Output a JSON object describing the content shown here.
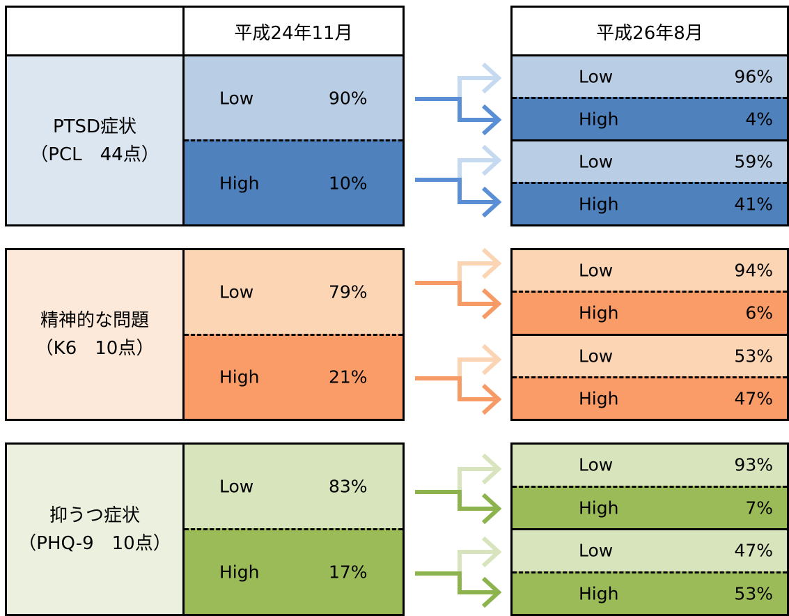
{
  "header": {
    "time1": "平成24年11月",
    "time2": "平成26年8月"
  },
  "groups": [
    {
      "label": "PTSD症状",
      "sublabel": "（PCL　44点）",
      "colors": {
        "light": "#b9cde4",
        "dark": "#4f81bd",
        "label_bg": "#dce6f1",
        "arrow_light": "#c5d9f1",
        "arrow_dark": "#5b8fd5"
      },
      "t1": [
        {
          "level": "Low",
          "pct": "90%"
        },
        {
          "level": "High",
          "pct": "10%"
        }
      ],
      "t2_from_low": [
        {
          "level": "Low",
          "pct": "96%"
        },
        {
          "level": "High",
          "pct": "4%"
        }
      ],
      "t2_from_high": [
        {
          "level": "Low",
          "pct": "59%"
        },
        {
          "level": "High",
          "pct": "41%"
        }
      ]
    },
    {
      "label": "精神的な問題",
      "sublabel": "（K6　10点）",
      "colors": {
        "light": "#fcd5b5",
        "dark": "#f79646",
        "label_bg": "#fde9d9",
        "arrow_light": "#fbd4b4",
        "arrow_dark": "#f79b66"
      },
      "t1": [
        {
          "level": "Low",
          "pct": "79%"
        },
        {
          "level": "High",
          "pct": "21%"
        }
      ],
      "t2_from_low": [
        {
          "level": "Low",
          "pct": "94%"
        },
        {
          "level": "High",
          "pct": "6%"
        }
      ],
      "t2_from_high": [
        {
          "level": "Low",
          "pct": "53%"
        },
        {
          "level": "High",
          "pct": "47%"
        }
      ]
    },
    {
      "label": "抑うつ症状",
      "sublabel": "（PHQ-9　10点）",
      "colors": {
        "light": "#d8e4bc",
        "dark": "#9bbb59",
        "label_bg": "#ebf1de",
        "arrow_light": "#d7e4bd",
        "arrow_dark": "#8db34f"
      },
      "t1": [
        {
          "level": "Low",
          "pct": "83%"
        },
        {
          "level": "High",
          "pct": "17%"
        }
      ],
      "t2_from_low": [
        {
          "level": "Low",
          "pct": "93%"
        },
        {
          "level": "High",
          "pct": "7%"
        }
      ],
      "t2_from_high": [
        {
          "level": "Low",
          "pct": "47%"
        },
        {
          "level": "High",
          "pct": "53%"
        }
      ]
    }
  ]
}
